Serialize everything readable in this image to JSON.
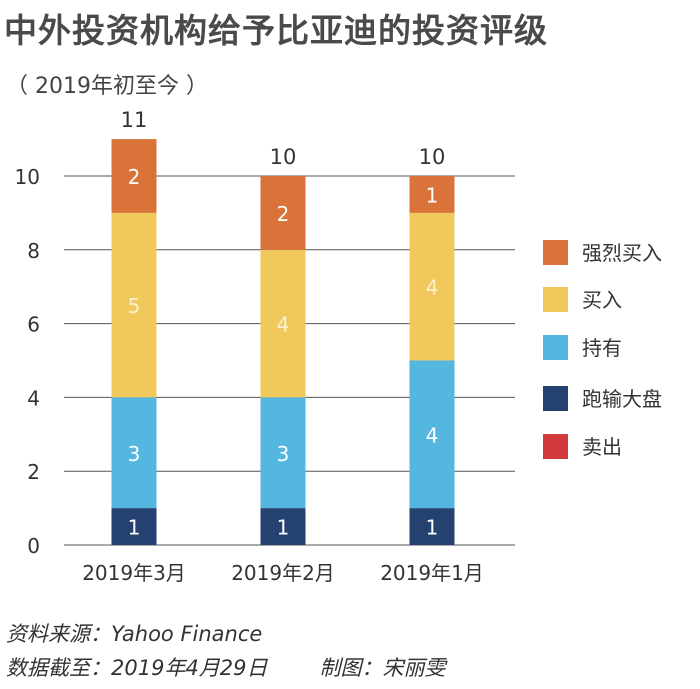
{
  "title": "中外投资机构给予比亚迪的投资评级",
  "subtitle": "（ 2019年初至今 ）",
  "colors": {
    "强烈买入": "#d9733a",
    "买入": "#f0c85c",
    "持有": "#53b7e0",
    "跑输大盘": "#24416f",
    "卖出": "#d33a3e",
    "grid": "#555555"
  },
  "chart_data": {
    "type": "bar",
    "stacked": true,
    "categories": [
      "2019年3月",
      "2019年2月",
      "2019年1月"
    ],
    "series": [
      {
        "name": "跑输大盘",
        "values": [
          1,
          1,
          1
        ]
      },
      {
        "name": "持有",
        "values": [
          3,
          3,
          4
        ]
      },
      {
        "name": "买入",
        "values": [
          5,
          4,
          4
        ]
      },
      {
        "name": "强烈买入",
        "values": [
          2,
          2,
          1
        ]
      },
      {
        "name": "卖出",
        "values": [
          0,
          0,
          0
        ]
      }
    ],
    "totals": [
      11,
      10,
      10
    ],
    "yticks": [
      0,
      2,
      4,
      6,
      8,
      10
    ],
    "ylim": [
      0,
      11
    ],
    "legend_order": [
      "强烈买入",
      "买入",
      "持有",
      "跑输大盘",
      "卖出"
    ],
    "legend_position": "right",
    "grid": true
  },
  "footer": {
    "source": "资料来源：Yahoo Finance",
    "date": "数据截至：2019年4月29日",
    "credit": "制图：宋丽雯"
  }
}
